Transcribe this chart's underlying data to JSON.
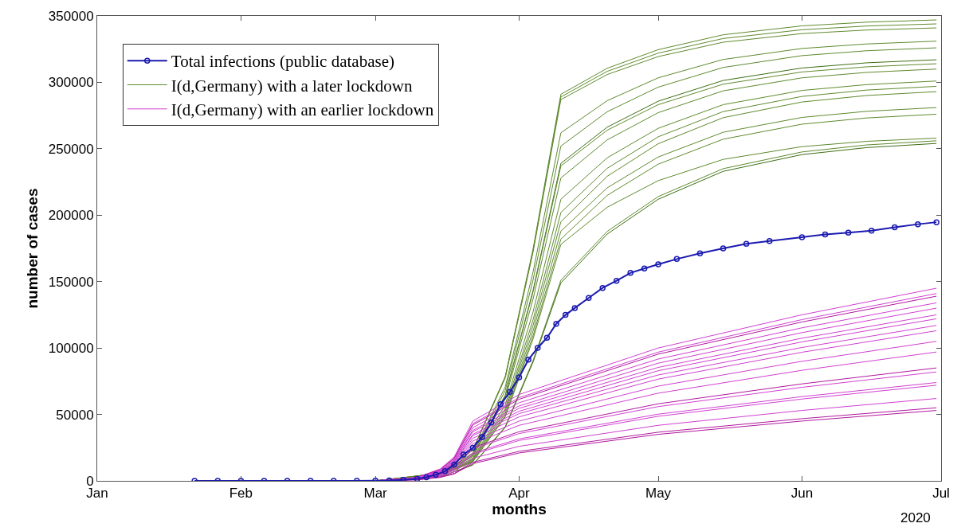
{
  "chart_data": {
    "type": "line",
    "xlabel": "months",
    "ylabel": "number of cases",
    "annotations": [
      "2020"
    ],
    "xlim": [
      "2020-01-01",
      "2020-07-01"
    ],
    "xticks": [
      {
        "value": "2020-01-01",
        "label": "Jan"
      },
      {
        "value": "2020-02-01",
        "label": "Feb"
      },
      {
        "value": "2020-03-01",
        "label": "Mar"
      },
      {
        "value": "2020-04-01",
        "label": "Apr"
      },
      {
        "value": "2020-05-01",
        "label": "May"
      },
      {
        "value": "2020-06-01",
        "label": "Jun"
      },
      {
        "value": "2020-07-01",
        "label": "Jul"
      }
    ],
    "ylim": [
      0,
      350000
    ],
    "yticks": [
      0,
      50000,
      100000,
      150000,
      200000,
      250000,
      300000,
      350000
    ],
    "grid": false,
    "legend": "top left",
    "line_style": "solid",
    "series": [
      {
        "name": "I(d,Germany) with a later lockdown",
        "color": "#5f8a2e",
        "x": [
          "2020-03-01",
          "2020-03-15",
          "2020-03-22",
          "2020-03-29",
          "2020-04-04",
          "2020-04-10",
          "2020-04-20",
          "2020-05-01",
          "2020-05-15",
          "2020-06-01",
          "2020-06-15",
          "2020-06-30"
        ],
        "values": [
          0,
          5800,
          23300,
          78600,
          174600,
          291000,
          310600,
          324600,
          335800,
          342500,
          345300,
          347000
        ]
      },
      {
        "color": "#5f8a2e",
        "x": [
          "2020-03-01",
          "2020-03-15",
          "2020-03-22",
          "2020-03-29",
          "2020-04-04",
          "2020-04-10",
          "2020-04-20",
          "2020-05-01",
          "2020-05-15",
          "2020-06-01",
          "2020-06-15",
          "2020-06-30"
        ],
        "values": [
          0,
          5800,
          23100,
          78000,
          173400,
          289000,
          308300,
          322000,
          333000,
          339600,
          342400,
          344000
        ]
      },
      {
        "color": "#5f8a2e",
        "x": [
          "2020-03-01",
          "2020-03-15",
          "2020-03-22",
          "2020-03-29",
          "2020-04-04",
          "2020-04-10",
          "2020-04-20",
          "2020-05-01",
          "2020-05-15",
          "2020-06-01",
          "2020-06-15",
          "2020-06-30"
        ],
        "values": [
          0,
          5700,
          23000,
          77500,
          172200,
          287000,
          305900,
          319400,
          330200,
          336700,
          339400,
          341000
        ]
      },
      {
        "color": "#5f8a2e",
        "x": [
          "2020-03-01",
          "2020-03-15",
          "2020-03-22",
          "2020-03-29",
          "2020-04-04",
          "2020-04-10",
          "2020-04-20",
          "2020-05-01",
          "2020-05-15",
          "2020-06-01",
          "2020-06-15",
          "2020-06-30"
        ],
        "values": [
          0,
          5200,
          21000,
          70700,
          157200,
          262000,
          286200,
          303400,
          317200,
          325500,
          328900,
          331000
        ]
      },
      {
        "color": "#5f8a2e",
        "x": [
          "2020-03-01",
          "2020-03-15",
          "2020-03-22",
          "2020-03-29",
          "2020-04-04",
          "2020-04-10",
          "2020-04-20",
          "2020-05-01",
          "2020-05-15",
          "2020-06-01",
          "2020-06-15",
          "2020-06-30"
        ],
        "values": [
          0,
          5000,
          20200,
          68000,
          151200,
          252000,
          277900,
          296400,
          311200,
          320100,
          323800,
          326000
        ]
      },
      {
        "color": "#3d6e14",
        "x": [
          "2020-03-01",
          "2020-03-15",
          "2020-03-22",
          "2020-03-29",
          "2020-04-04",
          "2020-04-10",
          "2020-04-20",
          "2020-05-01",
          "2020-05-15",
          "2020-06-01",
          "2020-06-15",
          "2020-06-30"
        ],
        "values": [
          0,
          4800,
          19100,
          64500,
          143400,
          239000,
          266300,
          285800,
          301400,
          310800,
          314700,
          317000
        ]
      },
      {
        "color": "#5f8a2e",
        "x": [
          "2020-03-01",
          "2020-03-15",
          "2020-03-22",
          "2020-03-29",
          "2020-04-04",
          "2020-04-10",
          "2020-04-20",
          "2020-05-01",
          "2020-05-15",
          "2020-06-01",
          "2020-06-15",
          "2020-06-30"
        ],
        "values": [
          0,
          4700,
          19000,
          64000,
          142200,
          237000,
          264000,
          283200,
          298600,
          307800,
          311700,
          314000
        ]
      },
      {
        "color": "#5f8a2e",
        "x": [
          "2020-03-01",
          "2020-03-15",
          "2020-03-22",
          "2020-03-29",
          "2020-04-04",
          "2020-04-10",
          "2020-04-20",
          "2020-05-01",
          "2020-05-15",
          "2020-06-01",
          "2020-06-15",
          "2020-06-30"
        ],
        "values": [
          0,
          4600,
          18200,
          61600,
          136800,
          228000,
          256700,
          277200,
          293600,
          303400,
          307500,
          310000
        ]
      },
      {
        "color": "#5f8a2e",
        "x": [
          "2020-03-01",
          "2020-03-15",
          "2020-03-22",
          "2020-03-29",
          "2020-04-04",
          "2020-04-10",
          "2020-04-20",
          "2020-05-01",
          "2020-05-15",
          "2020-06-01",
          "2020-06-15",
          "2020-06-30"
        ],
        "values": [
          0,
          4200,
          17000,
          57200,
          127200,
          212000,
          243200,
          265400,
          283200,
          293900,
          298300,
          301000
        ]
      },
      {
        "color": "#5f8a2e",
        "x": [
          "2020-03-01",
          "2020-03-15",
          "2020-03-22",
          "2020-03-29",
          "2020-04-04",
          "2020-04-10",
          "2020-04-20",
          "2020-05-01",
          "2020-05-15",
          "2020-06-01",
          "2020-06-15",
          "2020-06-30"
        ],
        "values": [
          0,
          4000,
          16200,
          54500,
          121200,
          202000,
          235300,
          259000,
          278000,
          289400,
          294200,
          297000
        ]
      },
      {
        "color": "#5f8a2e",
        "x": [
          "2020-03-01",
          "2020-03-15",
          "2020-03-22",
          "2020-03-29",
          "2020-04-04",
          "2020-04-10",
          "2020-04-20",
          "2020-05-01",
          "2020-05-15",
          "2020-06-01",
          "2020-06-15",
          "2020-06-30"
        ],
        "values": [
          0,
          3900,
          15600,
          52700,
          117000,
          195000,
          229300,
          253800,
          273400,
          285200,
          290100,
          293000
        ]
      },
      {
        "color": "#5f8a2e",
        "x": [
          "2020-03-01",
          "2020-03-15",
          "2020-03-22",
          "2020-03-29",
          "2020-04-04",
          "2020-04-10",
          "2020-04-20",
          "2020-05-01",
          "2020-05-15",
          "2020-06-01",
          "2020-06-15",
          "2020-06-30"
        ],
        "values": [
          0,
          3800,
          15000,
          50800,
          112800,
          188000,
          220600,
          243800,
          262400,
          273600,
          278200,
          281000
        ]
      },
      {
        "color": "#5f8a2e",
        "x": [
          "2020-03-01",
          "2020-03-15",
          "2020-03-22",
          "2020-03-29",
          "2020-04-04",
          "2020-04-10",
          "2020-04-20",
          "2020-05-01",
          "2020-05-15",
          "2020-06-01",
          "2020-06-15",
          "2020-06-30"
        ],
        "values": [
          0,
          3600,
          14600,
          49100,
          109200,
          182000,
          214900,
          238400,
          257200,
          268500,
          273200,
          276000
        ]
      },
      {
        "color": "#5f8a2e",
        "x": [
          "2020-03-01",
          "2020-03-15",
          "2020-03-22",
          "2020-03-29",
          "2020-04-04",
          "2020-04-10",
          "2020-04-20",
          "2020-05-01",
          "2020-05-15",
          "2020-06-01",
          "2020-06-15",
          "2020-06-30"
        ],
        "values": [
          0,
          3600,
          14200,
          48100,
          106800,
          178000,
          206000,
          226000,
          242000,
          251600,
          255600,
          258000
        ]
      },
      {
        "color": "#5f8a2e",
        "x": [
          "2020-03-01",
          "2020-03-15",
          "2020-03-22",
          "2020-03-29",
          "2020-04-04",
          "2020-04-10",
          "2020-04-20",
          "2020-05-01",
          "2020-05-15",
          "2020-06-01",
          "2020-06-15",
          "2020-06-30"
        ],
        "values": [
          0,
          3000,
          12100,
          40800,
          90600,
          151000,
          187800,
          214000,
          235000,
          247600,
          252900,
          256000
        ]
      },
      {
        "color": "#3d6e14",
        "x": [
          "2020-03-01",
          "2020-03-15",
          "2020-03-22",
          "2020-03-29",
          "2020-04-04",
          "2020-04-10",
          "2020-04-20",
          "2020-05-01",
          "2020-05-15",
          "2020-06-01",
          "2020-06-15",
          "2020-06-30"
        ],
        "values": [
          0,
          3000,
          11900,
          40200,
          89400,
          149000,
          185800,
          212000,
          233000,
          245600,
          250900,
          254000
        ]
      },
      {
        "name": "I(d,Germany) with an earlier lockdown",
        "color": "#d040d0",
        "x": [
          "2020-03-01",
          "2020-03-10",
          "2020-03-15",
          "2020-03-18",
          "2020-03-22",
          "2020-04-01",
          "2020-05-01",
          "2020-06-01",
          "2020-06-30"
        ],
        "values": [
          0,
          2700,
          9000,
          18000,
          45000,
          65000,
          100000,
          125000,
          145000
        ]
      },
      {
        "color": "#d040d0",
        "x": [
          "2020-03-01",
          "2020-03-10",
          "2020-03-15",
          "2020-03-18",
          "2020-03-22",
          "2020-04-01",
          "2020-05-01",
          "2020-06-01",
          "2020-06-30"
        ],
        "values": [
          0,
          2600,
          8600,
          17200,
          43000,
          62600,
          96900,
          121400,
          141000
        ]
      },
      {
        "color": "#b0189e",
        "x": [
          "2020-03-01",
          "2020-03-10",
          "2020-03-15",
          "2020-03-18",
          "2020-03-22",
          "2020-04-01",
          "2020-05-01",
          "2020-06-01",
          "2020-06-30"
        ],
        "values": [
          0,
          2500,
          8400,
          16800,
          42000,
          61400,
          95400,
          119600,
          139000
        ]
      },
      {
        "color": "#d040d0",
        "x": [
          "2020-03-01",
          "2020-03-10",
          "2020-03-15",
          "2020-03-18",
          "2020-03-22",
          "2020-04-01",
          "2020-05-01",
          "2020-06-01",
          "2020-06-30"
        ],
        "values": [
          0,
          2400,
          8000,
          16000,
          40000,
          58800,
          91700,
          115200,
          134000
        ]
      },
      {
        "color": "#d040d0",
        "x": [
          "2020-03-01",
          "2020-03-10",
          "2020-03-15",
          "2020-03-18",
          "2020-03-22",
          "2020-04-01",
          "2020-05-01",
          "2020-06-01",
          "2020-06-30"
        ],
        "values": [
          0,
          2300,
          7600,
          15200,
          38000,
          56400,
          88600,
          111600,
          130000
        ]
      },
      {
        "color": "#d040d0",
        "x": [
          "2020-03-01",
          "2020-03-10",
          "2020-03-15",
          "2020-03-18",
          "2020-03-22",
          "2020-04-01",
          "2020-05-01",
          "2020-06-01",
          "2020-06-30"
        ],
        "values": [
          0,
          2200,
          7400,
          14800,
          37000,
          54600,
          85400,
          107400,
          125000
        ]
      },
      {
        "color": "#d040d0",
        "x": [
          "2020-03-01",
          "2020-03-10",
          "2020-03-15",
          "2020-03-18",
          "2020-03-22",
          "2020-04-01",
          "2020-05-01",
          "2020-06-01",
          "2020-06-30"
        ],
        "values": [
          0,
          2100,
          7000,
          14000,
          35000,
          52400,
          82900,
          104600,
          122000
        ]
      },
      {
        "color": "#d040d0",
        "x": [
          "2020-03-01",
          "2020-03-10",
          "2020-03-15",
          "2020-03-18",
          "2020-03-22",
          "2020-04-01",
          "2020-05-01",
          "2020-06-01",
          "2020-06-30"
        ],
        "values": [
          0,
          2000,
          6800,
          13600,
          34000,
          50600,
          79700,
          100400,
          117000
        ]
      },
      {
        "color": "#d040d0",
        "x": [
          "2020-03-01",
          "2020-03-10",
          "2020-03-15",
          "2020-03-18",
          "2020-03-22",
          "2020-04-01",
          "2020-05-01",
          "2020-06-01",
          "2020-06-30"
        ],
        "values": [
          0,
          1900,
          6400,
          12800,
          32000,
          48200,
          76600,
          96800,
          113000
        ]
      },
      {
        "color": "#d040d0",
        "x": [
          "2020-03-01",
          "2020-03-10",
          "2020-03-15",
          "2020-03-18",
          "2020-03-22",
          "2020-04-01",
          "2020-05-01",
          "2020-06-01",
          "2020-06-30"
        ],
        "values": [
          0,
          1800,
          6000,
          12000,
          30000,
          45000,
          71300,
          90000,
          105000
        ]
      },
      {
        "color": "#d040d0",
        "x": [
          "2020-03-01",
          "2020-03-10",
          "2020-03-15",
          "2020-03-18",
          "2020-03-22",
          "2020-04-01",
          "2020-05-01",
          "2020-06-01",
          "2020-06-30"
        ],
        "values": [
          0,
          1700,
          5600,
          11200,
          28000,
          41800,
          66000,
          83200,
          97000
        ]
      },
      {
        "color": "#b0189e",
        "x": [
          "2020-03-01",
          "2020-03-10",
          "2020-03-15",
          "2020-03-18",
          "2020-03-22",
          "2020-04-01",
          "2020-05-01",
          "2020-06-01",
          "2020-06-30"
        ],
        "values": [
          0,
          1500,
          5000,
          10000,
          25000,
          37000,
          58000,
          73000,
          85000
        ]
      },
      {
        "color": "#d040d0",
        "x": [
          "2020-03-01",
          "2020-03-10",
          "2020-03-15",
          "2020-03-18",
          "2020-03-22",
          "2020-04-01",
          "2020-05-01",
          "2020-06-01",
          "2020-06-30"
        ],
        "values": [
          0,
          1400,
          4800,
          9600,
          24000,
          35600,
          55900,
          70400,
          82000
        ]
      },
      {
        "color": "#d040d0",
        "x": [
          "2020-03-01",
          "2020-03-10",
          "2020-03-15",
          "2020-03-18",
          "2020-03-22",
          "2020-04-01",
          "2020-05-01",
          "2020-06-01",
          "2020-06-30"
        ],
        "values": [
          0,
          1300,
          4200,
          8400,
          21000,
          31600,
          50200,
          63400,
          74000
        ]
      },
      {
        "color": "#d040d0",
        "x": [
          "2020-03-01",
          "2020-03-10",
          "2020-03-15",
          "2020-03-18",
          "2020-03-22",
          "2020-04-01",
          "2020-05-01",
          "2020-06-01",
          "2020-06-30"
        ],
        "values": [
          0,
          1200,
          4000,
          8000,
          20000,
          30400,
          48600,
          61600,
          72000
        ]
      },
      {
        "color": "#d040d0",
        "x": [
          "2020-03-01",
          "2020-03-10",
          "2020-03-15",
          "2020-03-18",
          "2020-03-22",
          "2020-04-01",
          "2020-05-01",
          "2020-06-01",
          "2020-06-30"
        ],
        "values": [
          0,
          1000,
          3400,
          6800,
          17000,
          26000,
          41800,
          53000,
          62000
        ]
      },
      {
        "color": "#b0189e",
        "x": [
          "2020-03-01",
          "2020-03-10",
          "2020-03-15",
          "2020-03-18",
          "2020-03-22",
          "2020-04-01",
          "2020-05-01",
          "2020-06-01",
          "2020-06-30"
        ],
        "values": [
          0,
          800,
          2800,
          5600,
          14000,
          22200,
          36600,
          46800,
          55000
        ]
      },
      {
        "color": "#b0189e",
        "x": [
          "2020-03-01",
          "2020-03-10",
          "2020-03-15",
          "2020-03-18",
          "2020-03-22",
          "2020-04-01",
          "2020-05-01",
          "2020-06-01",
          "2020-06-30"
        ],
        "values": [
          0,
          800,
          2600,
          5200,
          13000,
          21000,
          35000,
          45000,
          53000
        ]
      },
      {
        "name": "Total infections (public database)",
        "color": "#1a1ab0",
        "marker": "circle",
        "x": [
          "2020-01-22",
          "2020-01-27",
          "2020-02-01",
          "2020-02-06",
          "2020-02-11",
          "2020-02-16",
          "2020-02-21",
          "2020-02-26",
          "2020-03-01",
          "2020-03-04",
          "2020-03-07",
          "2020-03-10",
          "2020-03-12",
          "2020-03-14",
          "2020-03-16",
          "2020-03-18",
          "2020-03-20",
          "2020-03-22",
          "2020-03-24",
          "2020-03-26",
          "2020-03-28",
          "2020-03-30",
          "2020-04-01",
          "2020-04-03",
          "2020-04-05",
          "2020-04-07",
          "2020-04-09",
          "2020-04-11",
          "2020-04-13",
          "2020-04-16",
          "2020-04-19",
          "2020-04-22",
          "2020-04-25",
          "2020-04-28",
          "2020-05-01",
          "2020-05-05",
          "2020-05-10",
          "2020-05-15",
          "2020-05-20",
          "2020-05-25",
          "2020-06-01",
          "2020-06-06",
          "2020-06-11",
          "2020-06-16",
          "2020-06-21",
          "2020-06-26",
          "2020-06-30"
        ],
        "values": [
          0,
          0,
          0,
          0,
          0,
          0,
          0,
          0,
          100,
          300,
          800,
          1500,
          2700,
          4600,
          7300,
          12300,
          19800,
          24900,
          33000,
          43900,
          57700,
          66900,
          77900,
          91200,
          100100,
          107700,
          118200,
          124900,
          130100,
          137700,
          145200,
          150600,
          156500,
          159900,
          163000,
          167000,
          171300,
          175000,
          178500,
          180600,
          183400,
          185500,
          186800,
          188400,
          190900,
          193200,
          194700
        ]
      }
    ]
  }
}
